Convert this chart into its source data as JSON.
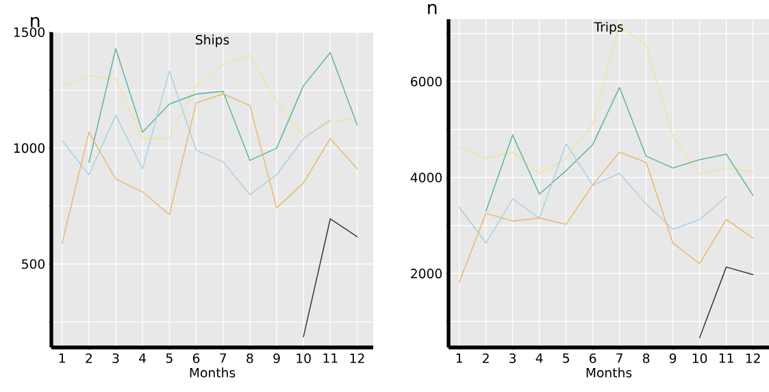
{
  "chart_data": [
    {
      "type": "line",
      "title": "Ships",
      "xlabel": "Months",
      "ylabel": "n",
      "x": [
        1,
        2,
        3,
        4,
        5,
        6,
        7,
        8,
        9,
        10,
        11,
        12
      ],
      "xlim": [
        0.6,
        12.6
      ],
      "xticks": [
        1,
        2,
        3,
        4,
        5,
        6,
        7,
        8,
        9,
        10,
        11,
        12
      ],
      "ylim": [
        140,
        1500
      ],
      "yticks": [
        {
          "value": 250,
          "label": null
        },
        500,
        {
          "value": 750,
          "label": null
        },
        1000,
        {
          "value": 1250,
          "label": null
        },
        1500
      ],
      "grid": true,
      "series": [
        {
          "color": "#efe59a",
          "values": [
            1266,
            1311,
            1299,
            1041,
            1041,
            1270,
            1358,
            1400,
            1200,
            1053,
            1110,
            1133
          ]
        },
        {
          "color": "#5bb39a",
          "values": [
            null,
            938,
            1429,
            1068,
            1190,
            1233,
            1245,
            947,
            1000,
            1269,
            1412,
            1100
          ]
        },
        {
          "color": "#a6cfe6",
          "values": [
            1032,
            885,
            1142,
            911,
            1332,
            991,
            941,
            799,
            885,
            1041,
            1121,
            null
          ]
        },
        {
          "color": "#e8b86a",
          "values": [
            589,
            1068,
            867,
            811,
            713,
            1195,
            1234,
            1184,
            742,
            850,
            1041,
            911
          ]
        },
        {
          "color": "#333333",
          "values": [
            null,
            null,
            null,
            null,
            null,
            null,
            null,
            null,
            null,
            186,
            695,
            618
          ]
        }
      ]
    },
    {
      "type": "line",
      "title": "Trips",
      "xlabel": "Months",
      "ylabel": "n",
      "x": [
        1,
        2,
        3,
        4,
        5,
        6,
        7,
        8,
        9,
        10,
        11,
        12
      ],
      "xlim": [
        0.6,
        12.6
      ],
      "xticks": [
        1,
        2,
        3,
        4,
        5,
        6,
        7,
        8,
        9,
        10,
        11,
        12
      ],
      "ylim": [
        460,
        7300
      ],
      "yticks": [
        {
          "value": 1000,
          "label": null
        },
        2000,
        {
          "value": 3000,
          "label": null
        },
        4000,
        {
          "value": 5000,
          "label": null
        },
        6000,
        {
          "value": 7000,
          "label": null
        }
      ],
      "grid": true,
      "series": [
        {
          "color": "#efe59a",
          "values": [
            4631,
            4401,
            4530,
            4086,
            4401,
            5118,
            7169,
            6753,
            4860,
            4072,
            4200,
            4115
          ]
        },
        {
          "color": "#5bb39a",
          "values": [
            null,
            3297,
            4889,
            3656,
            4143,
            4688,
            5878,
            4445,
            4200,
            4373,
            4488,
            3627
          ]
        },
        {
          "color": "#a6cfe6",
          "values": [
            3383,
            2637,
            3555,
            3154,
            4702,
            3842,
            4086,
            3450,
            2924,
            3125,
            3598,
            null
          ]
        },
        {
          "color": "#e8b86a",
          "values": [
            1820,
            3254,
            3096,
            3154,
            3025,
            3850,
            4530,
            4315,
            2637,
            2207,
            3125,
            2738
          ]
        },
        {
          "color": "#333333",
          "values": [
            null,
            null,
            null,
            null,
            null,
            null,
            null,
            null,
            null,
            659,
            2136,
            1978
          ]
        }
      ]
    }
  ]
}
